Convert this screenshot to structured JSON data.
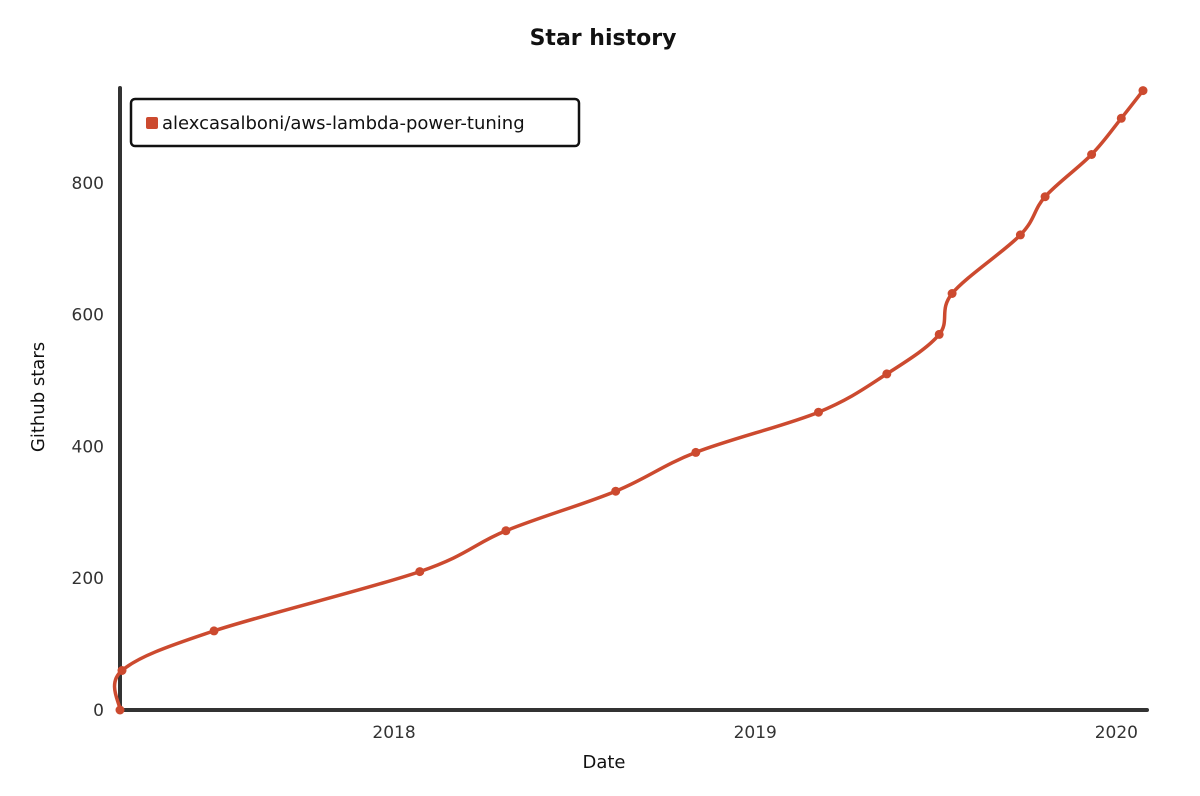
{
  "chart_data": {
    "type": "line",
    "title": "Star history",
    "xlabel": "Date",
    "ylabel": "Github stars",
    "x_ticks": [
      "2018",
      "2019",
      "2020"
    ],
    "y_ticks": [
      0,
      200,
      400,
      600,
      800
    ],
    "xlim": [
      "2017-03-30",
      "2020-02-01"
    ],
    "ylim": [
      0,
      950
    ],
    "legend_position": "top-left",
    "series": [
      {
        "name": "alexcasalboni/aws-lambda-power-tuning",
        "color": "#cc4a2f",
        "points": [
          {
            "x": "2017-03-30",
            "y": 0
          },
          {
            "x": "2017-04-01",
            "y": 60
          },
          {
            "x": "2017-07-03",
            "y": 120
          },
          {
            "x": "2018-01-27",
            "y": 210
          },
          {
            "x": "2018-04-24",
            "y": 272
          },
          {
            "x": "2018-08-13",
            "y": 332
          },
          {
            "x": "2018-11-02",
            "y": 391
          },
          {
            "x": "2019-03-06",
            "y": 452
          },
          {
            "x": "2019-05-14",
            "y": 510
          },
          {
            "x": "2019-07-06",
            "y": 570
          },
          {
            "x": "2019-07-19",
            "y": 632
          },
          {
            "x": "2019-09-26",
            "y": 721
          },
          {
            "x": "2019-10-21",
            "y": 779
          },
          {
            "x": "2019-12-07",
            "y": 843
          },
          {
            "x": "2020-01-06",
            "y": 898
          },
          {
            "x": "2020-01-28",
            "y": 940
          }
        ]
      }
    ]
  }
}
